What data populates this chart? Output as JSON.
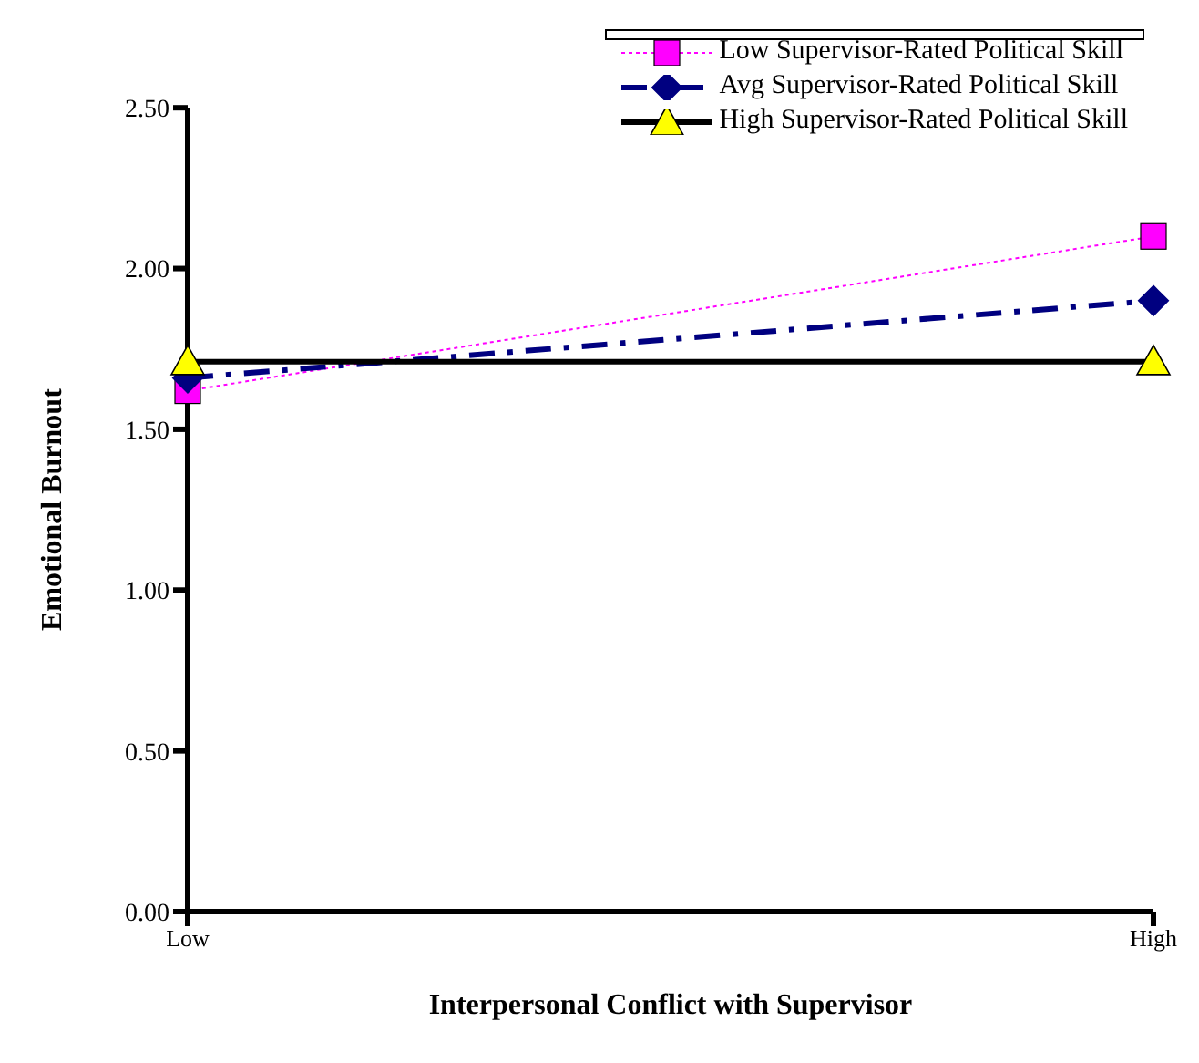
{
  "chart_data": {
    "type": "line",
    "xlabel": "Interpersonal Conflict with Supervisor",
    "ylabel": "Emotional Burnout",
    "categories": [
      "Low",
      "High"
    ],
    "ylim": [
      0,
      2.5
    ],
    "yticks": [
      {
        "value": 0,
        "label": "0.00"
      },
      {
        "value": 0.5,
        "label": "0.50"
      },
      {
        "value": 1,
        "label": "1.00"
      },
      {
        "value": 1.5,
        "label": "1.50"
      },
      {
        "value": 2,
        "label": "2.00"
      },
      {
        "value": 2.5,
        "label": "2.50"
      }
    ],
    "grid": false,
    "legend": "top right",
    "series": [
      {
        "name": "Low Supervisor-Rated Political Skill",
        "color": "#ff00ff",
        "values": [
          1.62,
          2.1
        ],
        "marker": "square",
        "line_style": "dotted"
      },
      {
        "name": "Avg Supervisor-Rated Political Skill",
        "color": "#000080",
        "values": [
          1.66,
          1.9
        ],
        "marker": "diamond",
        "line_style": "dashed"
      },
      {
        "name": "High Supervisor-Rated Political Skill",
        "color": "#ffff00",
        "values": [
          1.71,
          1.71
        ],
        "marker": "triangle",
        "line_style": "solid"
      }
    ]
  }
}
